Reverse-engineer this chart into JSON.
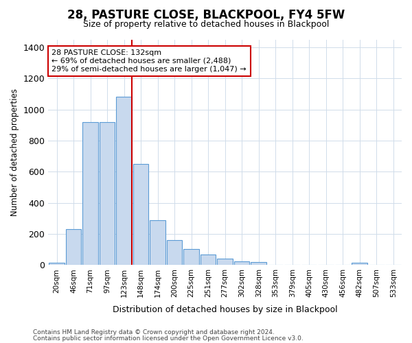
{
  "title": "28, PASTURE CLOSE, BLACKPOOL, FY4 5FW",
  "subtitle": "Size of property relative to detached houses in Blackpool",
  "xlabel": "Distribution of detached houses by size in Blackpool",
  "ylabel": "Number of detached properties",
  "footer1": "Contains HM Land Registry data © Crown copyright and database right 2024.",
  "footer2": "Contains public sector information licensed under the Open Government Licence v3.0.",
  "bin_labels": [
    "20sqm",
    "46sqm",
    "71sqm",
    "97sqm",
    "123sqm",
    "148sqm",
    "174sqm",
    "200sqm",
    "225sqm",
    "251sqm",
    "277sqm",
    "302sqm",
    "328sqm",
    "353sqm",
    "379sqm",
    "405sqm",
    "430sqm",
    "456sqm",
    "482sqm",
    "507sqm",
    "533sqm"
  ],
  "bar_values": [
    15,
    230,
    920,
    920,
    1080,
    650,
    290,
    160,
    105,
    70,
    40,
    25,
    20,
    0,
    0,
    0,
    0,
    0,
    15,
    0,
    0
  ],
  "bar_color": "#c8d9ee",
  "bar_edge_color": "#5b9bd5",
  "grid_color": "#d0dcea",
  "annotation_box_color": "#cc0000",
  "vline_color": "#cc0000",
  "vline_x_index": 4,
  "property_label": "28 PASTURE CLOSE: 132sqm",
  "annotation_line1": "← 69% of detached houses are smaller (2,488)",
  "annotation_line2": "29% of semi-detached houses are larger (1,047) →",
  "ylim": [
    0,
    1450
  ],
  "yticks": [
    0,
    200,
    400,
    600,
    800,
    1000,
    1200,
    1400
  ],
  "background_color": "#ffffff",
  "axes_bg": "#ffffff",
  "title_fontsize": 12,
  "subtitle_fontsize": 9
}
